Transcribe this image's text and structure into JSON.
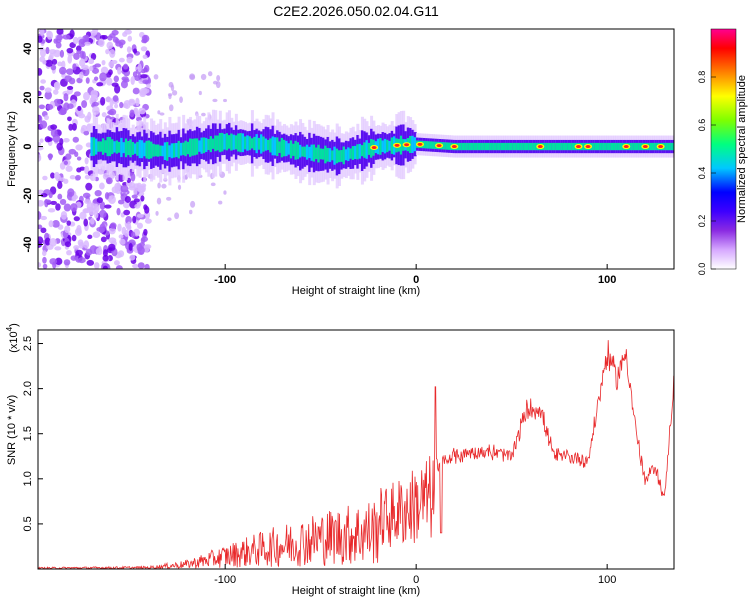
{
  "title": "C2E2.2026.050.02.04.G11",
  "chart_data": [
    {
      "type": "heatmap",
      "name": "spectrogram",
      "xlabel": "Height of straight line (km)",
      "ylabel": "Frequency (Hz)",
      "xlim": [
        -198,
        135
      ],
      "ylim": [
        -50,
        48
      ],
      "x_ticks": [
        -100,
        0,
        100
      ],
      "y_ticks": [
        -40,
        -20,
        0,
        20,
        40
      ],
      "x_tick_labels": [
        "-100",
        "0",
        "100"
      ],
      "y_tick_labels": [
        "-40",
        "-20",
        "0",
        "20",
        "40"
      ],
      "colorbar": {
        "label": "Normalized spectral amplitude",
        "range": [
          0,
          1
        ],
        "ticks": [
          0.0,
          0.2,
          0.4,
          0.6,
          0.8
        ],
        "tick_labels": [
          "0.0",
          "0.2",
          "0.4",
          "0.6",
          "0.8"
        ],
        "colors": [
          "#ffffff",
          "#d6a8ff",
          "#8a2be2",
          "#3d00ff",
          "#0000ff",
          "#00c8ff",
          "#00ff80",
          "#7fff00",
          "#ffff00",
          "#ff8000",
          "#ff0000",
          "#ff0090"
        ]
      },
      "ridge": [
        {
          "x": -160,
          "f": 0
        },
        {
          "x": -130,
          "f": -2
        },
        {
          "x": -100,
          "f": 2
        },
        {
          "x": -80,
          "f": 1
        },
        {
          "x": -60,
          "f": -2
        },
        {
          "x": -40,
          "f": -4
        },
        {
          "x": -20,
          "f": 0
        },
        {
          "x": 0,
          "f": 1
        },
        {
          "x": 20,
          "f": 0
        },
        {
          "x": 60,
          "f": 0
        },
        {
          "x": 100,
          "f": 0
        },
        {
          "x": 135,
          "f": 0
        }
      ]
    },
    {
      "type": "line",
      "name": "snr",
      "xlabel": "Height of straight line (km)",
      "ylabel": "SNR (10 * v/v)",
      "y_scale_label": "(x10",
      "y_scale_exponent": "4",
      "xlim": [
        -198,
        135
      ],
      "ylim": [
        0,
        2.65
      ],
      "x_ticks": [
        -100,
        0,
        100
      ],
      "y_ticks": [
        0.5,
        1.0,
        1.5,
        2.0,
        2.5
      ],
      "x_tick_labels": [
        "-100",
        "0",
        "100"
      ],
      "y_tick_labels": [
        "0.5",
        "1.0",
        "1.5",
        "2.0",
        "2.5"
      ],
      "color": "#e8292b",
      "envelope": [
        {
          "x": -198,
          "y": 0.02
        },
        {
          "x": -140,
          "y": 0.03
        },
        {
          "x": -120,
          "y": 0.1
        },
        {
          "x": -90,
          "y": 0.35
        },
        {
          "x": -70,
          "y": 0.5
        },
        {
          "x": -50,
          "y": 0.65
        },
        {
          "x": -30,
          "y": 0.75
        },
        {
          "x": -15,
          "y": 0.85
        },
        {
          "x": 0,
          "y": 1.05
        },
        {
          "x": 10,
          "y": 1.2
        },
        {
          "x": 20,
          "y": 1.3
        },
        {
          "x": 30,
          "y": 1.35
        },
        {
          "x": 40,
          "y": 1.35
        },
        {
          "x": 50,
          "y": 1.3
        },
        {
          "x": 58,
          "y": 1.85
        },
        {
          "x": 65,
          "y": 1.85
        },
        {
          "x": 72,
          "y": 1.3
        },
        {
          "x": 80,
          "y": 1.3
        },
        {
          "x": 90,
          "y": 1.25
        },
        {
          "x": 100,
          "y": 2.5
        },
        {
          "x": 105,
          "y": 2.2
        },
        {
          "x": 110,
          "y": 2.5
        },
        {
          "x": 115,
          "y": 1.6
        },
        {
          "x": 120,
          "y": 1.0
        },
        {
          "x": 125,
          "y": 1.2
        },
        {
          "x": 130,
          "y": 0.8
        },
        {
          "x": 135,
          "y": 2.2
        }
      ]
    }
  ]
}
